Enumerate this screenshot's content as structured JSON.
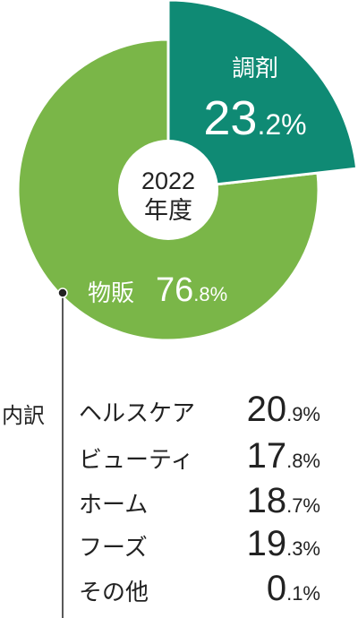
{
  "chart_data": {
    "type": "pie",
    "center_label": [
      "2022",
      "年度"
    ],
    "categories": [
      "調剤",
      "物販"
    ],
    "values": [
      23.2,
      76.8
    ],
    "value_labels": [
      "23.2%",
      "76.8%"
    ],
    "colors": [
      "#0f8a74",
      "#7ab648"
    ],
    "breakdown": {
      "label": "内訳",
      "categories": [
        "ヘルスケア",
        "ビューティ",
        "ホーム",
        "フーズ",
        "その他"
      ],
      "values": [
        20.9,
        17.8,
        18.7,
        19.3,
        0.1
      ],
      "value_labels": [
        "20.9%",
        "17.8%",
        "18.7%",
        "19.3%",
        "0.1%"
      ]
    }
  }
}
